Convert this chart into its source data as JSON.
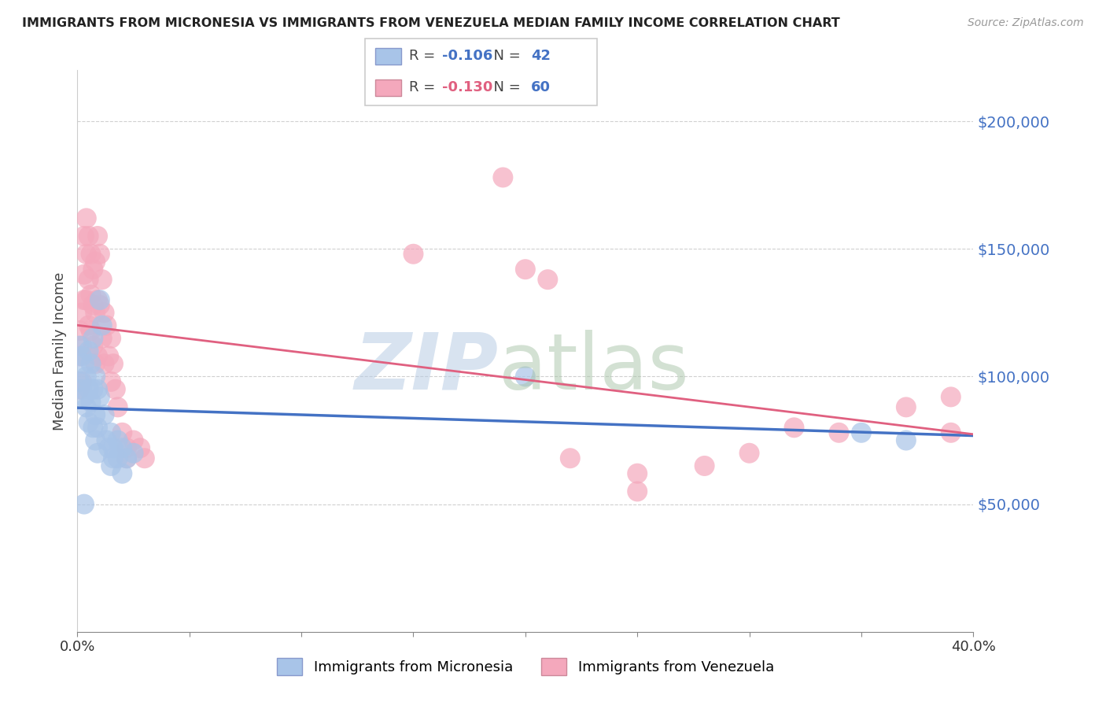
{
  "title": "IMMIGRANTS FROM MICRONESIA VS IMMIGRANTS FROM VENEZUELA MEDIAN FAMILY INCOME CORRELATION CHART",
  "source": "Source: ZipAtlas.com",
  "ylabel": "Median Family Income",
  "watermark_zip": "ZIP",
  "watermark_atlas": "atlas",
  "micronesia_R": -0.106,
  "micronesia_N": 42,
  "venezuela_R": -0.13,
  "venezuela_N": 60,
  "xlim": [
    0.0,
    0.4
  ],
  "ylim": [
    0,
    220000
  ],
  "micronesia_color": "#a8c4e8",
  "venezuela_color": "#f4a8bc",
  "micronesia_line_color": "#4472c4",
  "venezuela_line_color": "#e06080",
  "micronesia_points": [
    [
      0.001,
      112000
    ],
    [
      0.001,
      98000
    ],
    [
      0.002,
      108000
    ],
    [
      0.002,
      95000
    ],
    [
      0.003,
      105000
    ],
    [
      0.003,
      92000
    ],
    [
      0.004,
      100000
    ],
    [
      0.004,
      88000
    ],
    [
      0.005,
      110000
    ],
    [
      0.005,
      95000
    ],
    [
      0.005,
      82000
    ],
    [
      0.006,
      105000
    ],
    [
      0.006,
      90000
    ],
    [
      0.007,
      115000
    ],
    [
      0.007,
      95000
    ],
    [
      0.007,
      80000
    ],
    [
      0.008,
      100000
    ],
    [
      0.008,
      85000
    ],
    [
      0.008,
      75000
    ],
    [
      0.009,
      95000
    ],
    [
      0.009,
      80000
    ],
    [
      0.009,
      70000
    ],
    [
      0.01,
      130000
    ],
    [
      0.01,
      92000
    ],
    [
      0.011,
      120000
    ],
    [
      0.012,
      85000
    ],
    [
      0.013,
      75000
    ],
    [
      0.014,
      72000
    ],
    [
      0.015,
      78000
    ],
    [
      0.016,
      72000
    ],
    [
      0.016,
      68000
    ],
    [
      0.018,
      75000
    ],
    [
      0.018,
      68000
    ],
    [
      0.02,
      72000
    ],
    [
      0.022,
      68000
    ],
    [
      0.025,
      70000
    ],
    [
      0.2,
      100000
    ],
    [
      0.35,
      78000
    ],
    [
      0.37,
      75000
    ],
    [
      0.003,
      50000
    ],
    [
      0.015,
      65000
    ],
    [
      0.02,
      62000
    ]
  ],
  "venezuela_points": [
    [
      0.001,
      118000
    ],
    [
      0.001,
      108000
    ],
    [
      0.001,
      95000
    ],
    [
      0.002,
      125000
    ],
    [
      0.002,
      112000
    ],
    [
      0.002,
      98000
    ],
    [
      0.003,
      155000
    ],
    [
      0.003,
      140000
    ],
    [
      0.003,
      130000
    ],
    [
      0.004,
      162000
    ],
    [
      0.004,
      148000
    ],
    [
      0.004,
      130000
    ],
    [
      0.005,
      155000
    ],
    [
      0.005,
      138000
    ],
    [
      0.005,
      120000
    ],
    [
      0.006,
      148000
    ],
    [
      0.006,
      132000
    ],
    [
      0.006,
      118000
    ],
    [
      0.007,
      142000
    ],
    [
      0.007,
      128000
    ],
    [
      0.007,
      112000
    ],
    [
      0.008,
      145000
    ],
    [
      0.008,
      125000
    ],
    [
      0.008,
      105000
    ],
    [
      0.009,
      155000
    ],
    [
      0.009,
      130000
    ],
    [
      0.009,
      108000
    ],
    [
      0.01,
      148000
    ],
    [
      0.01,
      128000
    ],
    [
      0.011,
      138000
    ],
    [
      0.011,
      115000
    ],
    [
      0.012,
      125000
    ],
    [
      0.012,
      105000
    ],
    [
      0.013,
      120000
    ],
    [
      0.014,
      108000
    ],
    [
      0.015,
      115000
    ],
    [
      0.015,
      98000
    ],
    [
      0.016,
      105000
    ],
    [
      0.017,
      95000
    ],
    [
      0.018,
      88000
    ],
    [
      0.02,
      78000
    ],
    [
      0.022,
      72000
    ],
    [
      0.022,
      68000
    ],
    [
      0.025,
      75000
    ],
    [
      0.028,
      72000
    ],
    [
      0.03,
      68000
    ],
    [
      0.15,
      148000
    ],
    [
      0.19,
      178000
    ],
    [
      0.2,
      142000
    ],
    [
      0.21,
      138000
    ],
    [
      0.22,
      68000
    ],
    [
      0.25,
      62000
    ],
    [
      0.28,
      65000
    ],
    [
      0.3,
      70000
    ],
    [
      0.32,
      80000
    ],
    [
      0.34,
      78000
    ],
    [
      0.37,
      88000
    ],
    [
      0.39,
      92000
    ],
    [
      0.39,
      78000
    ],
    [
      0.25,
      55000
    ]
  ]
}
